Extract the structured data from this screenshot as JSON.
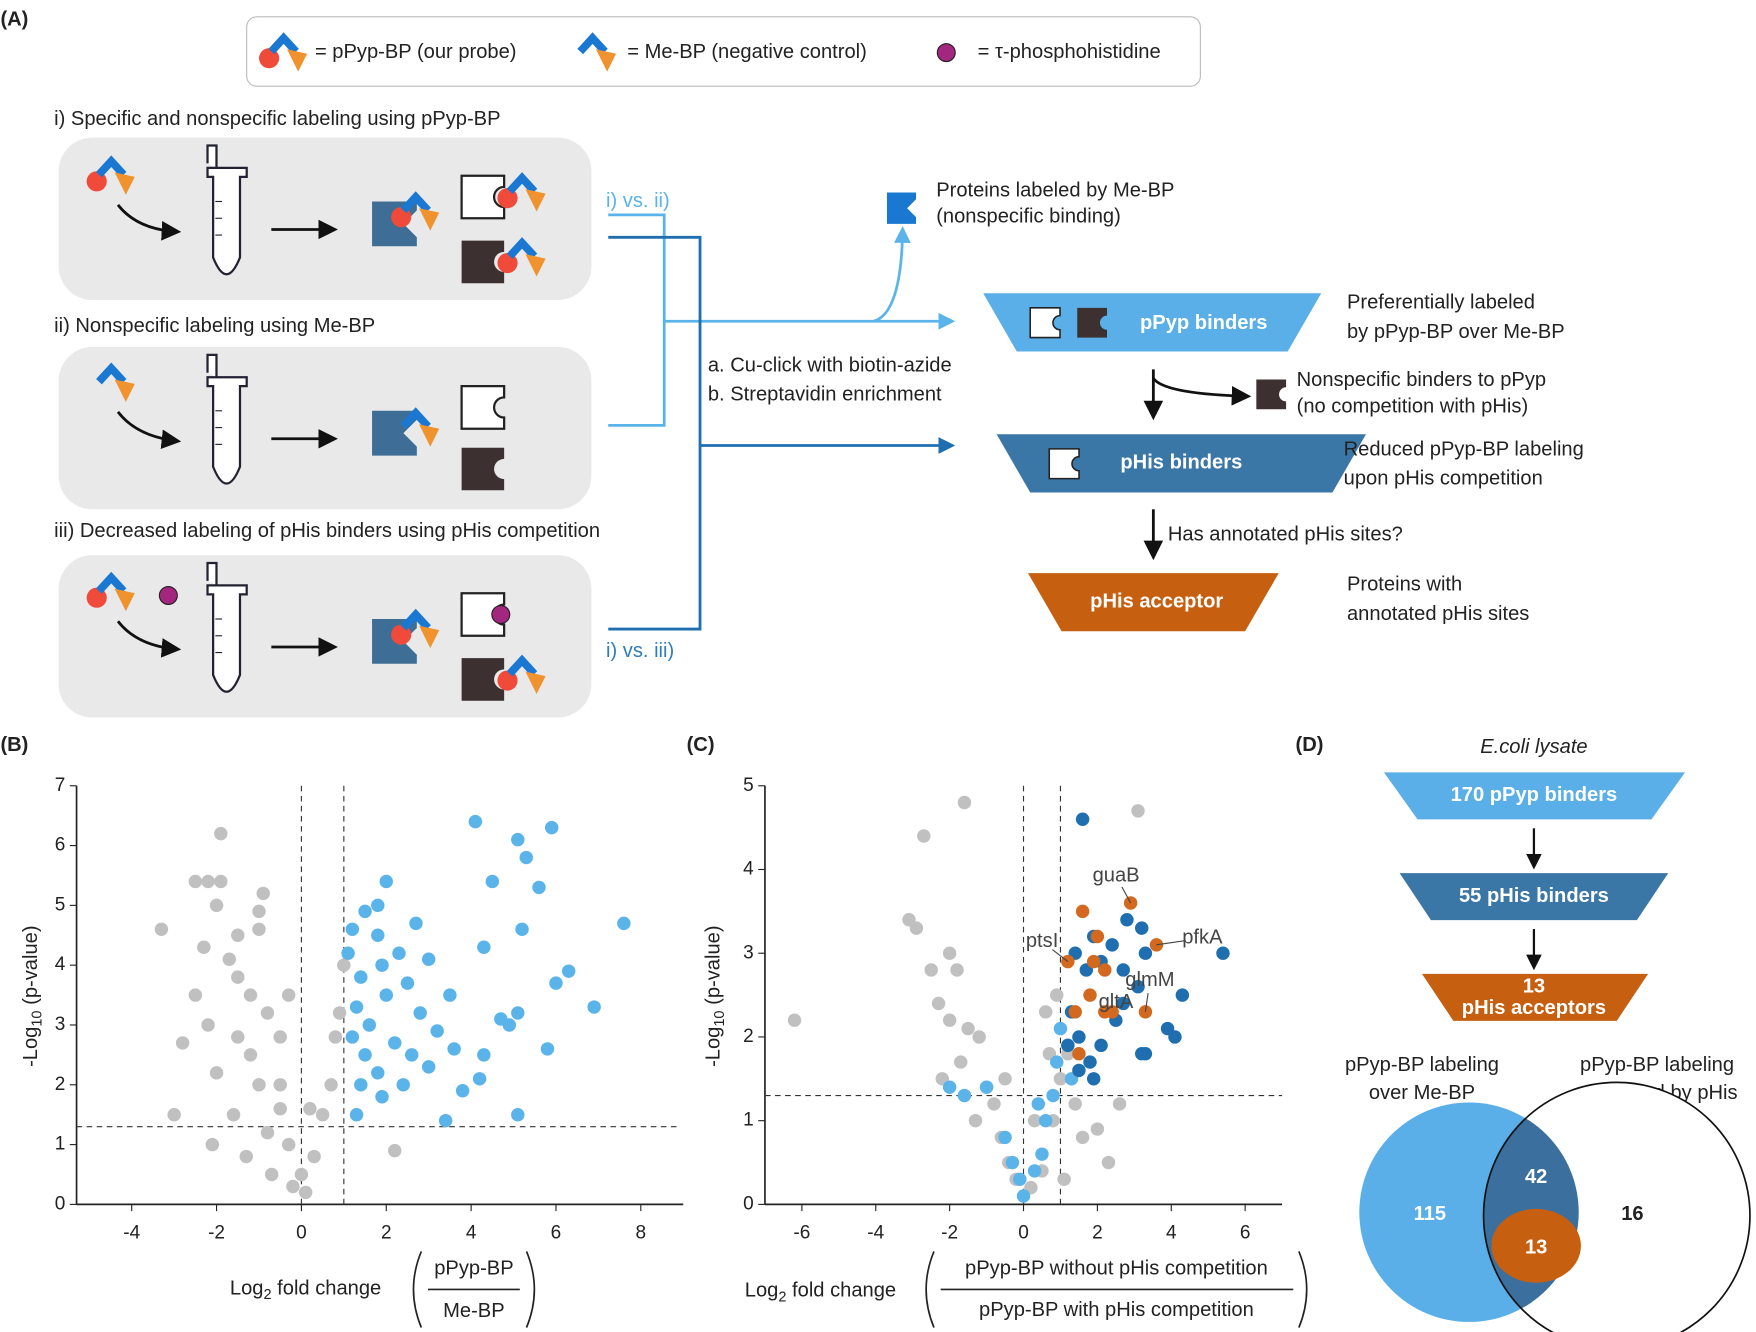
{
  "panel_labels": [
    "(A)",
    "(B)",
    "(C)",
    "(D)"
  ],
  "legend": [
    "=  pPyp-BP (our probe)",
    "=  Me-BP (negative control)",
    "=  τ-phosphohistidine"
  ],
  "workflow": {
    "steps": [
      "i) Specific and nonspecific labeling using pPyp-BP",
      "ii) Nonspecific labeling using Me-BP",
      "iii) Decreased labeling of pHis binders using pHis competition"
    ],
    "comparisons": [
      "i) vs. ii)",
      "i) vs. iii)"
    ],
    "methods": [
      "a. Cu-click with biotin-azide",
      "b. Streptavidin enrichment"
    ],
    "nonspecific_mebp": [
      "Proteins labeled by Me-BP",
      "(nonspecific binding)"
    ],
    "funnels": [
      "pPyp binders",
      "pHis binders",
      "pHis acceptor"
    ],
    "descriptions": [
      [
        "Preferentially labeled",
        "by pPyp-BP over Me-BP"
      ],
      [
        "Reduced pPyp-BP labeling",
        "upon pHis competition"
      ],
      [
        "Proteins with",
        "annotated pHis sites"
      ]
    ],
    "nonspecific_pyp": [
      "Nonspecific binders to pPyp",
      "(no competition with pHis)"
    ],
    "question": "Has annotated pHis sites?"
  },
  "chart_data": [
    {
      "type": "scatter",
      "ylabel": {
        "prefix": "-Log",
        "sub": "10",
        "suffix": " (p-value)"
      },
      "xlabel": {
        "prefix": "Log",
        "sub": "2",
        "suffix": " fold change",
        "numerator": "pPyp-BP",
        "denominator": "Me-BP"
      },
      "xlim": [
        -5.3,
        9
      ],
      "ylim": [
        0,
        7
      ],
      "xticks": [
        -4,
        -2,
        0,
        2,
        4,
        6,
        8
      ],
      "yticks": [
        0,
        1,
        2,
        3,
        4,
        5,
        6,
        7
      ],
      "vlines": [
        0,
        1
      ],
      "hline": 1.3,
      "series": [
        {
          "color": "#c0c0c0",
          "x": [
            -3.3,
            -2.5,
            -2.2,
            -1.9,
            -1.9,
            -2,
            -2.3,
            -1.5,
            -1,
            -0.9,
            -1,
            -1.7,
            -2.5,
            -2.8,
            -2.2,
            -1.5,
            -1.2,
            -0.8,
            -1.5,
            -2,
            -1.2,
            -0.5,
            -0.3,
            -0.5,
            -1,
            -1.6,
            -2.1,
            -0.8,
            -0.3,
            0,
            0.1,
            -0.2,
            0.3,
            0.5,
            0.7,
            0.8,
            0.9,
            1,
            -0.7,
            -1.3,
            2.2,
            0.2,
            -3,
            -0.5
          ],
          "values": [
            4.6,
            5.4,
            5.4,
            5.4,
            6.2,
            5,
            4.3,
            4.5,
            4.6,
            5.2,
            4.9,
            4.1,
            3.5,
            2.7,
            3,
            3.8,
            3.5,
            3.2,
            2.8,
            2.2,
            2.5,
            2.8,
            3.5,
            2,
            2,
            1.5,
            1,
            1.2,
            1,
            0.5,
            0.2,
            0.3,
            0.8,
            1.5,
            2,
            2.8,
            3.2,
            4,
            0.5,
            0.8,
            0.9,
            1.6,
            1.5,
            1.6
          ]
        },
        {
          "color": "#5ab4ea",
          "x": [
            1.2,
            1.5,
            1.8,
            1.1,
            1.4,
            1.9,
            1.3,
            1.6,
            2,
            2.3,
            2.7,
            2.5,
            3,
            2.8,
            1.2,
            1.5,
            1.8,
            2.2,
            2.6,
            3.2,
            3.5,
            3,
            1.4,
            1.9,
            2.4,
            1.3,
            3.4,
            1.8,
            2,
            4.1,
            4.5,
            5.1,
            5.3,
            5.6,
            5.9,
            5.2,
            4.3,
            4.7,
            5.1,
            5.8,
            6,
            6.3,
            6.9,
            7.6,
            4.2,
            5.1,
            3.8,
            4.3,
            3.6,
            4.9
          ],
          "values": [
            4.6,
            4.9,
            4.5,
            4.2,
            3.8,
            4,
            3.3,
            3,
            3.5,
            4.2,
            4.7,
            3.7,
            4.1,
            3.2,
            2.8,
            2.5,
            2.2,
            2.7,
            2.5,
            2.9,
            3.5,
            2.3,
            2,
            1.8,
            2,
            1.5,
            1.4,
            5,
            5.4,
            6.4,
            5.4,
            6.1,
            5.8,
            5.3,
            6.3,
            4.6,
            4.3,
            3.1,
            3.2,
            2.6,
            3.7,
            3.9,
            3.3,
            4.7,
            2.1,
            1.5,
            1.9,
            2.5,
            2.6,
            3
          ]
        }
      ]
    },
    {
      "type": "scatter",
      "ylabel": {
        "prefix": "-Log",
        "sub": "10",
        "suffix": " (p-value)"
      },
      "xlabel": {
        "prefix": "Log",
        "sub": "2",
        "suffix": " fold change",
        "numerator": "pPyp-BP without pHis competition",
        "denominator": "pPyp-BP with pHis competition"
      },
      "xlim": [
        -7,
        7
      ],
      "ylim": [
        0,
        5
      ],
      "xticks": [
        -6,
        -4,
        -2,
        0,
        2,
        4,
        6
      ],
      "yticks": [
        0,
        1,
        2,
        3,
        4,
        5
      ],
      "vlines": [
        0,
        1
      ],
      "hline": 1.3,
      "series": [
        {
          "color": "#c0c0c0",
          "x": [
            -6.2,
            -1.6,
            -2.7,
            -3.1,
            -2.9,
            -2.5,
            -2,
            -1.8,
            -2.3,
            -2,
            -1.5,
            -1.2,
            -1.7,
            -2.2,
            -1,
            -0.8,
            -1.3,
            -0.6,
            -0.4,
            -0.2,
            0.2,
            0.5,
            0.8,
            1,
            0.7,
            0.6,
            1.2,
            1.4,
            1.6,
            2,
            2.6,
            3.1,
            0.9,
            -0.5,
            0.3,
            2.3,
            1.1,
            -1.6
          ],
          "values": [
            2.2,
            4.8,
            4.4,
            3.4,
            3.3,
            2.8,
            3,
            2.8,
            2.4,
            2.2,
            2.1,
            2,
            1.7,
            1.5,
            1.4,
            1.2,
            1,
            0.8,
            0.5,
            0.3,
            0.2,
            0.4,
            1,
            1.5,
            1.8,
            2.3,
            1.8,
            1.2,
            0.8,
            0.9,
            1.2,
            4.7,
            2.5,
            1.5,
            1,
            0.5,
            0.3,
            1.3
          ]
        },
        {
          "color": "#5ab4ea",
          "x": [
            -2,
            -1.6,
            -1,
            -0.5,
            -0.3,
            -0.1,
            0,
            0.3,
            0.5,
            0.6,
            0.8,
            0.9,
            1.2,
            1,
            0.4,
            1.3
          ],
          "values": [
            1.4,
            1.3,
            1.4,
            0.8,
            0.5,
            0.3,
            0.1,
            0.4,
            0.6,
            1,
            1.3,
            1.7,
            1.9,
            2.1,
            1.2,
            1.5
          ]
        },
        {
          "color": "#1f6fb0",
          "x": [
            1.6,
            1.4,
            1.7,
            1.9,
            2.1,
            2.4,
            2.7,
            2.8,
            3.2,
            3.3,
            4.3,
            5.4,
            1.3,
            1.5,
            1.8,
            2.1,
            2.5,
            3.3,
            3.9,
            4.1,
            1.5,
            1.9,
            2.7,
            3.1,
            1.2,
            3.2
          ],
          "values": [
            4.6,
            3,
            2.8,
            3.2,
            2.9,
            3.1,
            2.8,
            3.4,
            3.3,
            3,
            2.5,
            3,
            2.3,
            2,
            1.7,
            1.9,
            2.2,
            1.8,
            2.1,
            2,
            1.6,
            1.5,
            2.4,
            2.6,
            1.9,
            1.8
          ]
        },
        {
          "color": "#d2691e",
          "x": [
            2.9,
            3.6,
            1.2,
            3.3,
            2.2,
            1.6,
            2,
            1.9,
            2.2,
            1.8,
            2.4,
            1.5,
            1.4
          ],
          "values": [
            3.6,
            3.1,
            2.9,
            2.3,
            2.3,
            3.5,
            3.2,
            2.9,
            2.8,
            2.5,
            2.3,
            1.8,
            2.3
          ]
        }
      ],
      "annotations": [
        {
          "text": "guaB",
          "x": 2.9,
          "y": 3.6
        },
        {
          "text": "pfkA",
          "x": 3.6,
          "y": 3.1
        },
        {
          "text": "ptsI",
          "x": 1.2,
          "y": 2.9
        },
        {
          "text": "glmM",
          "x": 3.3,
          "y": 2.3
        },
        {
          "text": "gltA",
          "x": 2.2,
          "y": 2.3
        }
      ]
    }
  ],
  "panel_d": {
    "title": "E.coli lysate",
    "funnels": [
      [
        "170 pPyp binders"
      ],
      [
        "55 pHis binders"
      ],
      [
        "13",
        "pHis acceptors"
      ]
    ],
    "venn": {
      "left_label": [
        "pPyp-BP labeling",
        "over Me-BP"
      ],
      "right_label": [
        "pPyp-BP labeling",
        "competed by pHis"
      ],
      "left_only": 115,
      "overlap": 42,
      "acceptors": 13,
      "right_only": 16
    }
  }
}
